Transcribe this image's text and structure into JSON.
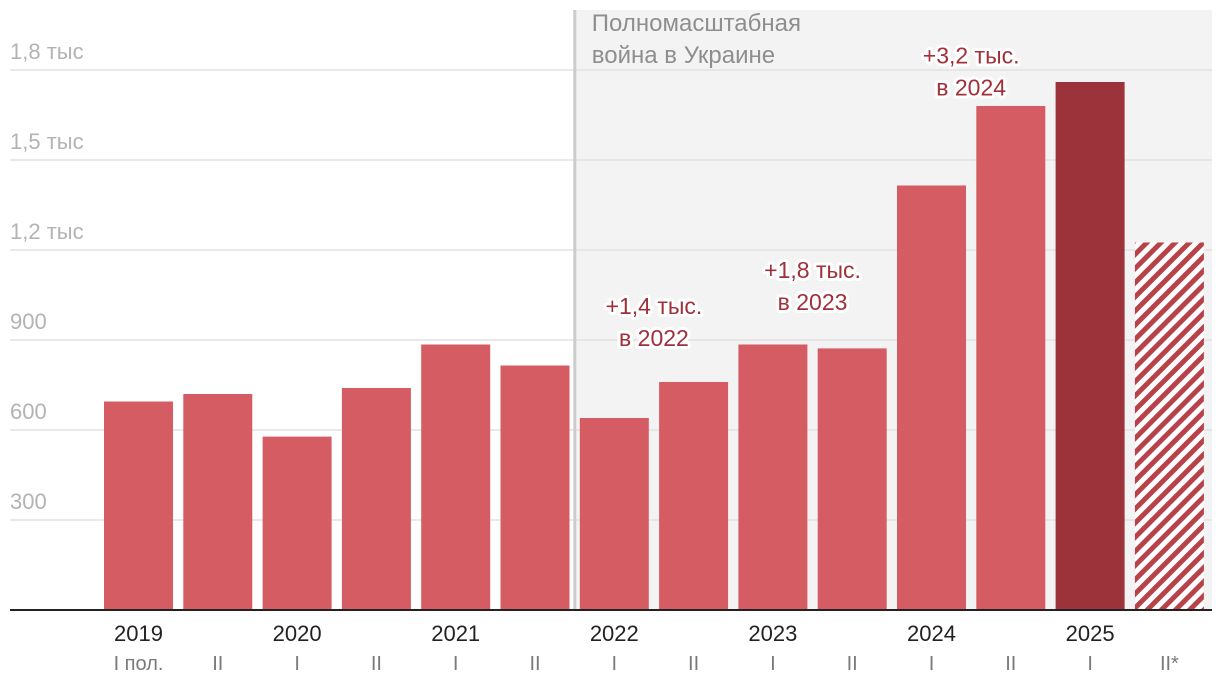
{
  "chart_data": {
    "type": "bar",
    "title": "",
    "xlabel": "",
    "ylabel": "",
    "ylim": [
      0,
      2000
    ],
    "y_ticks": [
      {
        "value": 300,
        "label": "300"
      },
      {
        "value": 600,
        "label": "600"
      },
      {
        "value": 900,
        "label": "900"
      },
      {
        "value": 1200,
        "label": "1,2 тыс"
      },
      {
        "value": 1500,
        "label": "1,5 тыс"
      },
      {
        "value": 1800,
        "label": "1,8 тыс"
      }
    ],
    "bars": [
      {
        "year": "2019",
        "half": "I пол.",
        "value": 695,
        "style": "normal"
      },
      {
        "year": "",
        "half": "II",
        "value": 720,
        "style": "normal"
      },
      {
        "year": "2020",
        "half": "I",
        "value": 578,
        "style": "normal"
      },
      {
        "year": "",
        "half": "II",
        "value": 740,
        "style": "normal"
      },
      {
        "year": "2021",
        "half": "I",
        "value": 885,
        "style": "normal"
      },
      {
        "year": "",
        "half": "II",
        "value": 815,
        "style": "normal"
      },
      {
        "year": "2022",
        "half": "I",
        "value": 640,
        "style": "normal"
      },
      {
        "year": "",
        "half": "II",
        "value": 760,
        "style": "normal"
      },
      {
        "year": "2023",
        "half": "I",
        "value": 885,
        "style": "normal"
      },
      {
        "year": "",
        "half": "II",
        "value": 872,
        "style": "normal"
      },
      {
        "year": "2024",
        "half": "I",
        "value": 1415,
        "style": "normal"
      },
      {
        "year": "",
        "half": "II",
        "value": 1680,
        "style": "normal"
      },
      {
        "year": "2025",
        "half": "I",
        "value": 1760,
        "style": "highlight"
      },
      {
        "year": "",
        "half": "II*",
        "value": 1225,
        "style": "projected"
      }
    ],
    "shaded_region": {
      "from_bar": 6,
      "label_lines": [
        "Полномасштабная",
        "война в Украине"
      ]
    },
    "annotations": [
      {
        "bar": 6.5,
        "lines": [
          "+1,4 тыс.",
          "в 2022"
        ],
        "above_value": 880
      },
      {
        "bar": 8.5,
        "lines": [
          "+1,8 тыс.",
          "в 2023"
        ],
        "above_value": 1000
      },
      {
        "bar": 10.5,
        "lines": [
          "+3,2 тыс.",
          "в 2024"
        ],
        "above_value": 1715
      }
    ],
    "colors": {
      "bar": "#d45c62",
      "highlight": "#9d333a",
      "projected": "#b8424a",
      "annotation": "#a0303a",
      "shade": "#f3f3f3",
      "grid": "#e2e2e2",
      "divider": "#cccccc"
    }
  }
}
